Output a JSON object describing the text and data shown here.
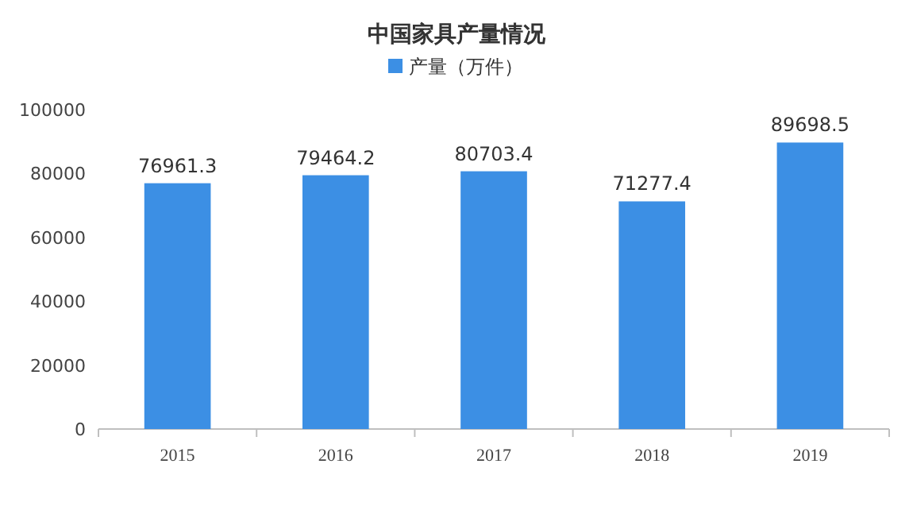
{
  "chart_data": {
    "type": "bar",
    "title": "中国家具产量情况",
    "categories": [
      "2015",
      "2016",
      "2017",
      "2018",
      "2019"
    ],
    "series": [
      {
        "name": "产量（万件）",
        "color": "#3c8fe4",
        "values": [
          76961.3,
          79464.2,
          80703.4,
          71277.4,
          89698.5
        ]
      }
    ],
    "ylim": [
      0,
      100000
    ],
    "yticks": [
      0,
      20000,
      40000,
      60000,
      80000,
      100000
    ],
    "data_labels": true,
    "legend": "top"
  }
}
